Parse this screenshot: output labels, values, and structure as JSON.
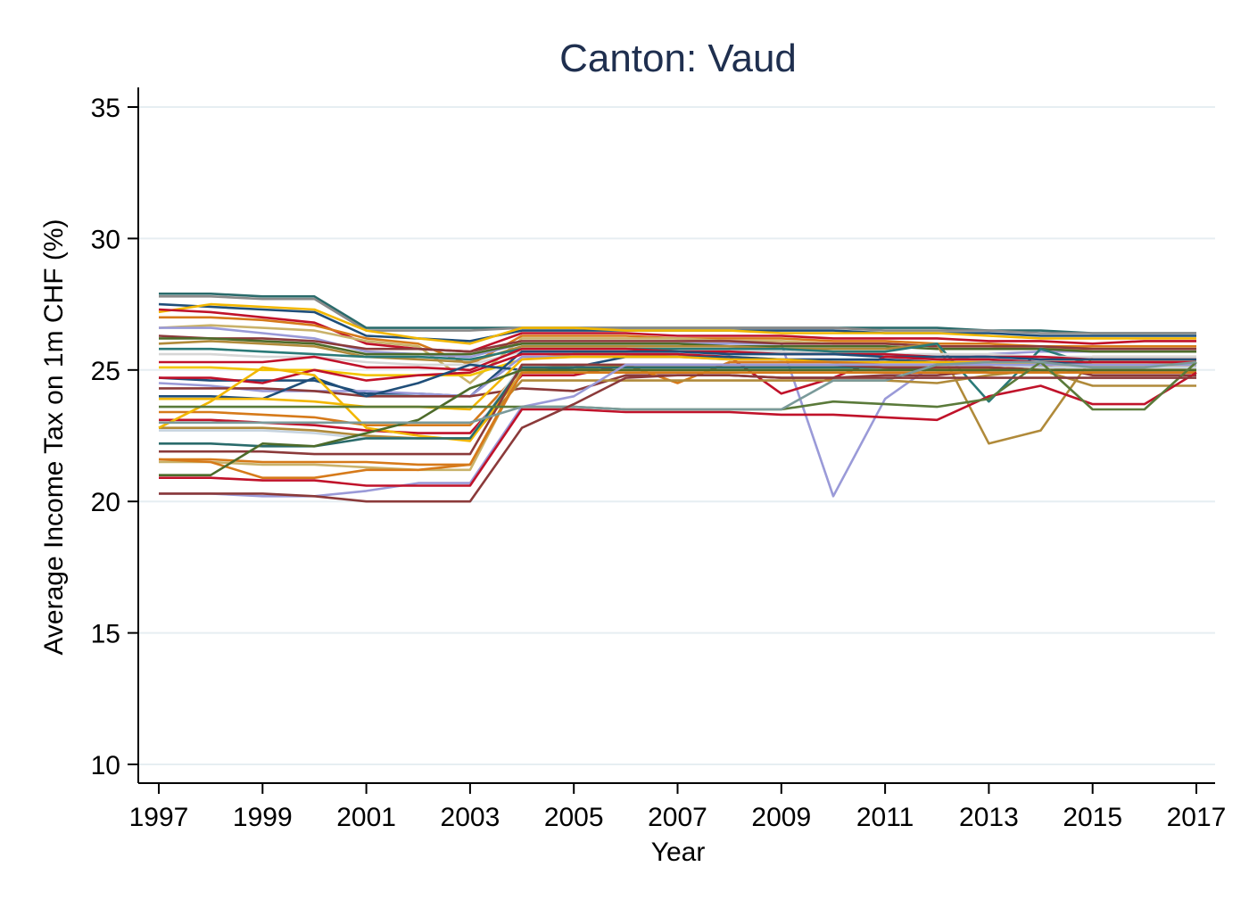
{
  "chart_data": {
    "type": "line",
    "title": "Canton: Vaud",
    "xlabel": "Year",
    "ylabel": "Average Income Tax on 1m CHF (%)",
    "x_ticks": [
      "1997",
      "1999",
      "2001",
      "2003",
      "2005",
      "2007",
      "2009",
      "2011",
      "2013",
      "2015",
      "2017"
    ],
    "y_ticks": [
      "10",
      "15",
      "20",
      "25",
      "30",
      "35"
    ],
    "xlim": [
      1997,
      2017
    ],
    "ylim": [
      10,
      35
    ],
    "grid": true,
    "legend": "none",
    "x": [
      1997,
      1998,
      1999,
      2000,
      2001,
      2002,
      2003,
      2004,
      2005,
      2006,
      2007,
      2008,
      2009,
      2010,
      2011,
      2012,
      2013,
      2014,
      2015,
      2016,
      2017
    ],
    "series": [
      {
        "color": "#2a6b6b",
        "values": [
          27.9,
          27.9,
          27.8,
          27.8,
          26.6,
          26.6,
          26.6,
          26.6,
          26.6,
          26.6,
          26.6,
          26.6,
          26.6,
          26.6,
          26.6,
          26.6,
          26.5,
          26.5,
          26.4,
          26.4,
          26.4
        ]
      },
      {
        "color": "#8a8a8a",
        "values": [
          27.8,
          27.8,
          27.7,
          27.7,
          26.5,
          26.5,
          26.5,
          26.6,
          26.6,
          26.6,
          26.6,
          26.6,
          26.6,
          26.6,
          26.5,
          26.5,
          26.5,
          26.4,
          26.4,
          26.4,
          26.4
        ]
      },
      {
        "color": "#1f4e79",
        "values": [
          27.5,
          27.4,
          27.3,
          27.2,
          26.3,
          26.2,
          26.1,
          26.5,
          26.5,
          26.5,
          26.5,
          26.5,
          26.5,
          26.5,
          26.4,
          26.4,
          26.4,
          26.3,
          26.3,
          26.3,
          26.3
        ]
      },
      {
        "color": "#f2b700",
        "values": [
          27.2,
          27.5,
          27.4,
          27.3,
          26.5,
          26.2,
          26.0,
          26.6,
          26.6,
          26.5,
          26.5,
          26.5,
          26.4,
          26.4,
          26.4,
          26.4,
          26.3,
          26.2,
          26.2,
          26.2,
          26.2
        ]
      },
      {
        "color": "#c0122a",
        "values": [
          27.3,
          27.2,
          27.0,
          26.8,
          26.0,
          25.8,
          25.7,
          26.4,
          26.4,
          26.4,
          26.3,
          26.3,
          26.3,
          26.2,
          26.2,
          26.2,
          26.1,
          26.1,
          26.0,
          26.1,
          26.1
        ]
      },
      {
        "color": "#d67a1a",
        "values": [
          27.0,
          27.0,
          26.9,
          26.7,
          26.2,
          26.0,
          25.2,
          26.3,
          26.3,
          26.3,
          26.2,
          26.2,
          26.2,
          26.1,
          26.1,
          26.0,
          26.0,
          25.9,
          25.9,
          25.9,
          25.9
        ]
      },
      {
        "color": "#c9b26a",
        "values": [
          26.6,
          26.7,
          26.6,
          26.5,
          26.1,
          25.9,
          24.5,
          26.2,
          26.2,
          26.2,
          26.2,
          26.1,
          26.1,
          26.0,
          26.0,
          25.9,
          25.9,
          25.8,
          25.8,
          25.8,
          25.8
        ]
      },
      {
        "color": "#9a9ad8",
        "values": [
          26.6,
          26.6,
          26.4,
          26.2,
          25.7,
          25.6,
          25.5,
          26.0,
          26.0,
          26.0,
          26.0,
          26.0,
          26.0,
          20.2,
          23.9,
          25.3,
          25.6,
          25.7,
          25.7,
          25.7,
          25.7
        ]
      },
      {
        "color": "#8b3a3a",
        "values": [
          26.3,
          26.2,
          26.2,
          26.1,
          25.8,
          25.8,
          25.7,
          26.1,
          26.1,
          26.1,
          26.1,
          26.1,
          26.0,
          26.0,
          26.0,
          25.9,
          25.9,
          25.9,
          25.8,
          25.8,
          25.8
        ]
      },
      {
        "color": "#4d6b2a",
        "values": [
          26.2,
          26.2,
          26.1,
          26.0,
          25.6,
          25.6,
          25.6,
          26.0,
          26.0,
          26.0,
          26.0,
          25.9,
          25.9,
          25.9,
          25.9,
          25.8,
          25.8,
          25.8,
          25.7,
          25.7,
          25.7
        ]
      },
      {
        "color": "#b08a3a",
        "values": [
          26.0,
          26.1,
          26.0,
          25.9,
          25.5,
          25.4,
          25.3,
          25.9,
          25.9,
          25.9,
          25.9,
          25.9,
          25.8,
          25.8,
          25.8,
          26.0,
          22.2,
          22.7,
          25.5,
          25.5,
          25.5
        ]
      },
      {
        "color": "#2a7a78",
        "values": [
          25.8,
          25.8,
          25.7,
          25.6,
          25.5,
          25.5,
          25.4,
          25.8,
          25.8,
          25.8,
          25.8,
          25.8,
          25.8,
          25.7,
          25.7,
          26.0,
          23.8,
          25.8,
          25.2,
          25.2,
          25.3
        ]
      },
      {
        "color": "#d6d6d6",
        "values": [
          25.6,
          25.6,
          25.5,
          25.5,
          25.3,
          25.2,
          25.2,
          25.7,
          25.7,
          25.7,
          25.7,
          25.7,
          25.7,
          25.6,
          25.6,
          25.6,
          25.6,
          25.5,
          25.5,
          25.5,
          25.5
        ]
      },
      {
        "color": "#c0122a",
        "values": [
          25.3,
          25.3,
          25.3,
          25.5,
          25.1,
          25.1,
          25.0,
          25.8,
          25.8,
          25.8,
          25.7,
          25.7,
          25.6,
          25.6,
          25.6,
          25.5,
          25.5,
          25.5,
          25.4,
          25.4,
          25.4
        ]
      },
      {
        "color": "#f2c400",
        "values": [
          25.1,
          25.1,
          25.0,
          25.0,
          24.8,
          24.8,
          24.8,
          25.4,
          25.6,
          25.6,
          25.5,
          25.5,
          25.4,
          25.3,
          25.3,
          25.3,
          25.3,
          25.3,
          25.3,
          25.3,
          25.3
        ]
      },
      {
        "color": "#1f4e79",
        "values": [
          24.7,
          24.6,
          24.6,
          24.6,
          24.1,
          24.1,
          24.0,
          25.7,
          25.7,
          25.7,
          25.7,
          25.6,
          25.6,
          25.6,
          25.5,
          25.5,
          25.5,
          25.4,
          25.4,
          25.4,
          25.4
        ]
      },
      {
        "color": "#c0122a",
        "values": [
          24.7,
          24.7,
          24.5,
          25.0,
          24.6,
          24.8,
          24.9,
          25.6,
          25.6,
          25.6,
          25.6,
          25.5,
          24.1,
          24.7,
          25.5,
          25.4,
          25.4,
          25.3,
          25.3,
          25.3,
          25.3
        ]
      },
      {
        "color": "#9a9ad8",
        "values": [
          24.5,
          24.4,
          24.2,
          24.2,
          24.2,
          24.1,
          24.0,
          25.5,
          25.5,
          25.5,
          25.5,
          25.4,
          25.4,
          25.4,
          25.3,
          25.3,
          25.3,
          25.2,
          25.2,
          25.2,
          25.2
        ]
      },
      {
        "color": "#8b3a3a",
        "values": [
          24.3,
          24.3,
          24.3,
          24.2,
          24.0,
          24.0,
          24.0,
          24.3,
          24.2,
          24.8,
          24.8,
          24.8,
          24.7,
          24.7,
          24.8,
          24.8,
          25.0,
          25.2,
          24.8,
          24.8,
          24.8
        ]
      },
      {
        "color": "#1f4e79",
        "values": [
          24.0,
          24.0,
          23.9,
          24.7,
          24.0,
          24.5,
          25.2,
          25.0,
          25.1,
          25.5,
          25.5,
          25.5,
          25.4,
          25.4,
          25.4,
          25.3,
          25.3,
          25.3,
          25.2,
          25.2,
          25.2
        ]
      },
      {
        "color": "#f2b700",
        "values": [
          23.9,
          23.9,
          23.9,
          23.8,
          23.6,
          23.6,
          23.5,
          25.4,
          25.5,
          25.5,
          25.5,
          25.4,
          25.4,
          25.3,
          25.3,
          25.3,
          25.3,
          25.2,
          25.2,
          25.2,
          25.2
        ]
      },
      {
        "color": "#d67a1a",
        "values": [
          23.4,
          23.4,
          23.3,
          23.2,
          22.9,
          22.9,
          22.9,
          25.0,
          25.2,
          25.2,
          24.5,
          25.3,
          25.3,
          25.3,
          25.2,
          25.2,
          25.2,
          25.1,
          25.1,
          25.1,
          25.1
        ]
      },
      {
        "color": "#c0122a",
        "values": [
          23.1,
          23.1,
          23.0,
          22.9,
          22.7,
          22.6,
          22.6,
          24.8,
          24.8,
          25.2,
          25.2,
          25.2,
          25.2,
          25.2,
          25.1,
          25.1,
          25.1,
          25.0,
          25.0,
          25.0,
          25.0
        ]
      },
      {
        "color": "#b08a3a",
        "values": [
          22.8,
          22.8,
          22.8,
          22.7,
          22.5,
          22.4,
          22.4,
          24.6,
          24.6,
          24.6,
          24.6,
          24.6,
          24.6,
          24.6,
          24.6,
          24.5,
          24.8,
          25.0,
          24.4,
          24.4,
          24.4
        ]
      },
      {
        "color": "#c7d4e0",
        "values": [
          22.7,
          22.7,
          22.7,
          22.6,
          22.4,
          22.4,
          22.4,
          25.2,
          25.2,
          25.2,
          25.2,
          25.2,
          25.2,
          25.2,
          25.2,
          25.2,
          25.2,
          25.1,
          25.1,
          25.1,
          25.1
        ]
      },
      {
        "color": "#f2b700",
        "values": [
          22.8,
          23.8,
          25.1,
          24.8,
          22.8,
          22.5,
          22.3,
          24.9,
          25.0,
          25.2,
          25.2,
          25.2,
          25.2,
          25.2,
          25.1,
          25.1,
          25.1,
          25.0,
          25.0,
          25.0,
          25.0
        ]
      },
      {
        "color": "#2a6b6b",
        "values": [
          22.2,
          22.2,
          22.1,
          22.1,
          22.4,
          22.4,
          22.4,
          25.1,
          25.1,
          25.1,
          25.1,
          25.1,
          25.1,
          25.1,
          25.1,
          25.0,
          25.0,
          25.0,
          25.0,
          25.0,
          25.0
        ]
      },
      {
        "color": "#8b3a3a",
        "values": [
          21.9,
          21.9,
          21.9,
          21.8,
          21.8,
          21.8,
          21.8,
          25.2,
          25.2,
          25.2,
          25.2,
          25.2,
          25.2,
          25.2,
          25.1,
          25.1,
          25.1,
          25.0,
          25.0,
          25.0,
          25.0
        ]
      },
      {
        "color": "#d67a1a",
        "values": [
          21.6,
          21.6,
          21.5,
          21.5,
          21.5,
          21.4,
          21.4,
          25.0,
          25.0,
          25.0,
          25.0,
          25.0,
          25.0,
          25.0,
          25.0,
          25.0,
          25.0,
          25.0,
          25.0,
          25.0,
          25.0
        ]
      },
      {
        "color": "#c9b26a",
        "values": [
          21.5,
          21.5,
          21.4,
          21.4,
          21.3,
          21.2,
          21.2,
          25.0,
          25.0,
          25.0,
          25.0,
          25.0,
          25.0,
          25.0,
          25.0,
          25.0,
          25.0,
          25.0,
          25.0,
          25.0,
          25.0
        ]
      },
      {
        "color": "#d67a1a",
        "values": [
          21.6,
          21.5,
          20.9,
          20.9,
          21.2,
          21.2,
          21.4,
          24.9,
          24.9,
          24.9,
          24.9,
          24.9,
          24.9,
          24.9,
          24.9,
          24.9,
          24.9,
          24.9,
          24.9,
          24.9,
          24.9
        ]
      },
      {
        "color": "#4d6b2a",
        "values": [
          21.0,
          21.0,
          22.2,
          22.1,
          22.6,
          23.1,
          24.3,
          25.0,
          25.0,
          25.0,
          25.0,
          25.0,
          25.0,
          25.0,
          25.0,
          25.0,
          25.0,
          25.0,
          25.0,
          25.0,
          25.0
        ]
      },
      {
        "color": "#9a9ad8",
        "values": [
          20.3,
          20.3,
          20.2,
          20.2,
          20.4,
          20.7,
          20.7,
          23.6,
          24.0,
          25.2,
          25.2,
          25.2,
          25.2,
          25.2,
          25.2,
          25.2,
          25.2,
          25.2,
          25.2,
          25.2,
          25.2
        ]
      },
      {
        "color": "#c0122a",
        "values": [
          20.9,
          20.9,
          20.8,
          20.8,
          20.6,
          20.6,
          20.6,
          23.5,
          23.5,
          23.4,
          23.4,
          23.4,
          23.3,
          23.3,
          23.2,
          23.1,
          24.0,
          24.4,
          23.7,
          23.7,
          24.9
        ]
      },
      {
        "color": "#5a7a3a",
        "values": [
          23.6,
          23.6,
          23.6,
          23.6,
          23.6,
          23.6,
          23.6,
          23.6,
          23.6,
          23.5,
          23.5,
          23.5,
          23.5,
          23.8,
          23.7,
          23.6,
          23.9,
          25.3,
          23.5,
          23.5,
          25.3
        ]
      },
      {
        "color": "#7a9a9a",
        "values": [
          23.0,
          23.0,
          23.0,
          23.0,
          23.0,
          23.0,
          23.0,
          23.6,
          23.6,
          23.5,
          23.5,
          23.5,
          23.5,
          24.6,
          24.6,
          25.2,
          25.3,
          25.3,
          25.1,
          25.1,
          25.3
        ]
      },
      {
        "color": "#8b3a3a",
        "values": [
          20.3,
          20.3,
          20.3,
          20.2,
          20.0,
          20.0,
          20.0,
          22.8,
          23.7,
          24.7,
          24.8,
          24.8,
          24.7,
          24.7,
          24.7,
          24.7,
          24.7,
          24.7,
          24.7,
          24.7,
          24.7
        ]
      }
    ]
  }
}
